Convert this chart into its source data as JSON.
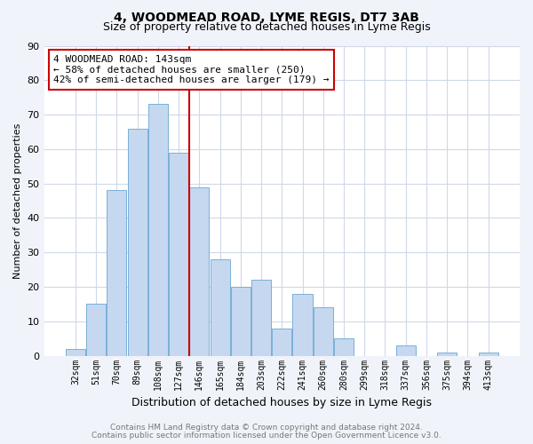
{
  "title1": "4, WOODMEAD ROAD, LYME REGIS, DT7 3AB",
  "title2": "Size of property relative to detached houses in Lyme Regis",
  "xlabel": "Distribution of detached houses by size in Lyme Regis",
  "ylabel": "Number of detached properties",
  "bar_labels": [
    "32sqm",
    "51sqm",
    "70sqm",
    "89sqm",
    "108sqm",
    "127sqm",
    "146sqm",
    "165sqm",
    "184sqm",
    "203sqm",
    "222sqm",
    "241sqm",
    "260sqm",
    "280sqm",
    "299sqm",
    "318sqm",
    "337sqm",
    "356sqm",
    "375sqm",
    "394sqm",
    "413sqm"
  ],
  "bar_values": [
    2,
    15,
    48,
    66,
    73,
    59,
    49,
    28,
    20,
    22,
    8,
    18,
    14,
    5,
    0,
    0,
    3,
    0,
    1,
    0,
    1
  ],
  "bar_color": "#c5d8f0",
  "bar_edge_color": "#7ab0d8",
  "vline_x_index": 5.5,
  "vline_color": "#cc0000",
  "annotation_line1": "4 WOODMEAD ROAD: 143sqm",
  "annotation_line2": "← 58% of detached houses are smaller (250)",
  "annotation_line3": "42% of semi-detached houses are larger (179) →",
  "annotation_box_facecolor": "#ffffff",
  "annotation_box_edgecolor": "#cc0000",
  "ylim": [
    0,
    90
  ],
  "yticks": [
    0,
    10,
    20,
    30,
    40,
    50,
    60,
    70,
    80,
    90
  ],
  "footer1": "Contains HM Land Registry data © Crown copyright and database right 2024.",
  "footer2": "Contains public sector information licensed under the Open Government Licence v3.0.",
  "bg_color": "#f0f4fa",
  "plot_bg_color": "#ffffff",
  "title1_fontsize": 10,
  "title2_fontsize": 9,
  "xlabel_fontsize": 9,
  "ylabel_fontsize": 8,
  "footer_color": "#777777"
}
